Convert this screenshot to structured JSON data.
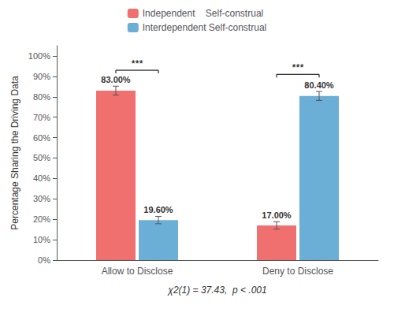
{
  "chart_data": {
    "type": "bar",
    "categories": [
      "Allow to Disclose",
      "Deny to Disclose"
    ],
    "series": [
      {
        "name": "Independent    Self-construal",
        "color": "#F07070",
        "values": [
          83.0,
          17.0
        ],
        "errors": [
          2.2,
          1.8
        ],
        "value_labels": [
          "83.00%",
          "17.00%"
        ]
      },
      {
        "name": "Interdependent Self-construal",
        "color": "#6BAED6",
        "values": [
          19.6,
          80.4
        ],
        "errors": [
          1.8,
          2.2
        ],
        "value_labels": [
          "19.60%",
          "80.40%"
        ]
      }
    ],
    "ylabel": "Percentage Sharing the Driving Data",
    "xlabel": "χ2(1) = 37.43,  p < .001",
    "ylim": [
      0,
      105
    ],
    "yticks": [
      {
        "value": 0,
        "label": "0%"
      },
      {
        "value": 10,
        "label": "10%"
      },
      {
        "value": 20,
        "label": "20%"
      },
      {
        "value": 30,
        "label": "30%"
      },
      {
        "value": 40,
        "label": "40%"
      },
      {
        "value": 50,
        "label": "50%"
      },
      {
        "value": 60,
        "label": "60%"
      },
      {
        "value": 70,
        "label": "70%"
      },
      {
        "value": 80,
        "label": "80%"
      },
      {
        "value": 90,
        "label": "90%"
      },
      {
        "value": 100,
        "label": "100%"
      }
    ],
    "significance": [
      {
        "category": "Allow to Disclose",
        "label": "***",
        "y": 93
      },
      {
        "category": "Deny to Disclose",
        "label": "***",
        "y": 91
      }
    ],
    "data_labels": true,
    "grid": false,
    "legend": "top"
  }
}
